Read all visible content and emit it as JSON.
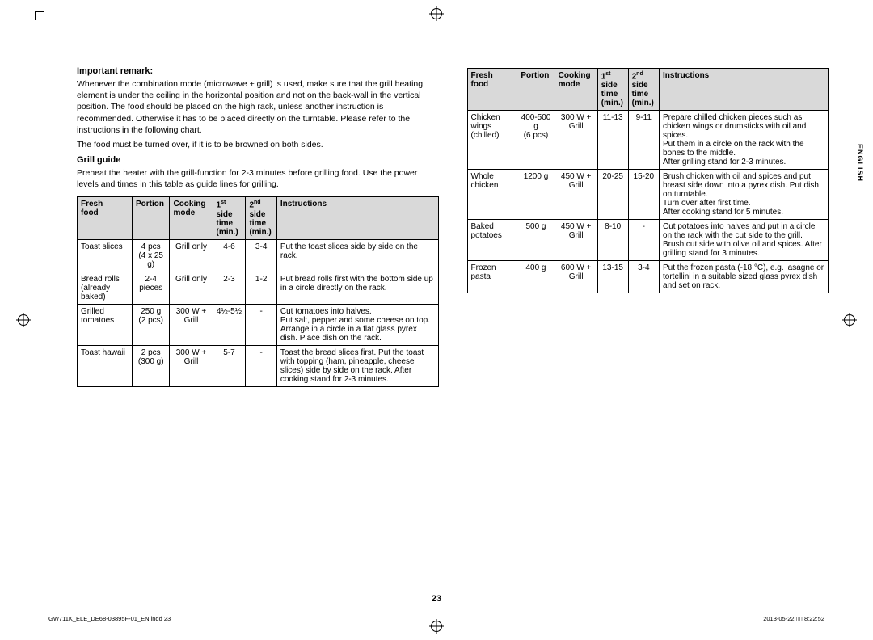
{
  "registration_marks": true,
  "left": {
    "remark_heading": "Important remark:",
    "remark_text": "Whenever the combination mode (microwave + grill) is used, make sure that the grill heating element is under the ceiling in the horizontal position and not on the back-wall in the vertical position. The food should be placed on the high rack, unless another instruction is recommended. Otherwise it has to be placed directly on the turntable. Please refer to the instructions in the following chart.",
    "remark_text2": "The food must be turned over, if it is to be browned on both sides.",
    "grill_heading": "Grill guide",
    "grill_intro": "Preheat the heater with the grill-function for 2-3 minutes before grilling food. Use the power levels and times in this table as guide lines for grilling.",
    "table": {
      "headers": [
        "Fresh food",
        "Portion",
        "Cooking mode",
        "1st side time (min.)",
        "2nd side time (min.)",
        "Instructions"
      ],
      "rows": [
        [
          "Toast slices",
          "4 pcs\n(4 x 25 g)",
          "Grill only",
          "4-6",
          "3-4",
          "Put the toast slices side by side on the rack."
        ],
        [
          "Bread rolls (already baked)",
          "2-4 pieces",
          "Grill only",
          "2-3",
          "1-2",
          "Put bread rolls first with the bottom side up in a circle directly on the rack."
        ],
        [
          "Grilled tomatoes",
          "250 g\n(2 pcs)",
          "300 W + Grill",
          "4½-5½",
          "-",
          "Cut tomatoes into halves.\nPut salt, pepper and some cheese on top. Arrange in a circle in a flat glass pyrex dish. Place dish on the rack."
        ],
        [
          "Toast hawaii",
          "2 pcs\n(300 g)",
          "300 W + Grill",
          "5-7",
          "-",
          "Toast the bread slices first. Put the toast with topping (ham, pineapple, cheese slices) side by side on the rack. After cooking stand for 2-3 minutes."
        ]
      ]
    }
  },
  "right": {
    "table": {
      "headers": [
        "Fresh food",
        "Portion",
        "Cooking mode",
        "1st side time (min.)",
        "2nd side time (min.)",
        "Instructions"
      ],
      "rows": [
        [
          "Chicken wings (chilled)",
          "400-500 g\n(6 pcs)",
          "300 W + Grill",
          "11-13",
          "9-11",
          "Prepare chilled chicken pieces such as chicken wings or drumsticks with oil and spices.\nPut them in a circle on the rack with the bones to the middle.\nAfter grilling stand for 2-3 minutes."
        ],
        [
          "Whole chicken",
          "1200 g",
          "450 W + Grill",
          "20-25",
          "15-20",
          "Brush chicken with oil and spices and put breast side down into a pyrex dish. Put dish on turntable.\nTurn over after first time.\nAfter cooking stand for 5 minutes."
        ],
        [
          "Baked potatoes",
          "500 g",
          "450 W + Grill",
          "8-10",
          "-",
          "Cut potatoes into halves and put in a circle on the rack with the cut side to the grill. Brush cut side with olive oil and spices. After grilling stand for 3 minutes."
        ],
        [
          "Frozen pasta",
          "400 g",
          "600 W + Grill",
          "13-15",
          "3-4",
          "Put the frozen pasta (-18 °C), e.g. lasagne or tortellini in a suitable sized glass pyrex dish and set on rack."
        ]
      ]
    },
    "sidetab": "ENGLISH"
  },
  "page_number": "23",
  "footer_left": "GW711K_ELE_DE68-03895F-01_EN.indd   23",
  "footer_right": "2013-05-22   ▯▯ 8:22:52"
}
